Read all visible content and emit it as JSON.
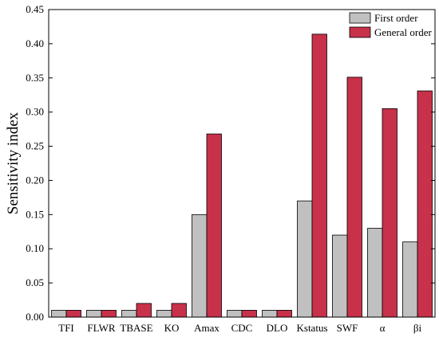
{
  "chart_data": {
    "type": "bar",
    "ylabel": "Sensitivity index",
    "xlabel": "",
    "ylim": [
      0,
      0.45
    ],
    "yticks": [
      "0.00",
      "0.05",
      "0.10",
      "0.15",
      "0.20",
      "0.25",
      "0.30",
      "0.35",
      "0.40",
      "0.45"
    ],
    "categories": [
      "TFI",
      "FLWR",
      "TBASE",
      "KO",
      "Amax",
      "CDC",
      "DLO",
      "Kstatus",
      "SWF",
      "α",
      "βi"
    ],
    "series": [
      {
        "name": "First order",
        "color": "#c0c0c0",
        "values": [
          0.01,
          0.01,
          0.01,
          0.01,
          0.15,
          0.01,
          0.01,
          0.17,
          0.12,
          0.13,
          0.11
        ]
      },
      {
        "name": "General order",
        "color": "#c8314a",
        "values": [
          0.01,
          0.01,
          0.02,
          0.02,
          0.268,
          0.01,
          0.01,
          0.414,
          0.351,
          0.305,
          0.331
        ]
      }
    ],
    "legend_position": "top-right",
    "grid": false
  }
}
